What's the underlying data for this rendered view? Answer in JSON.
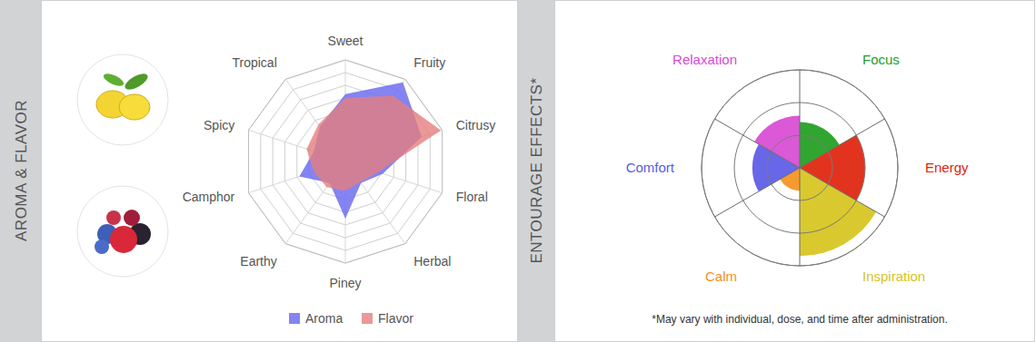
{
  "chart_data": [
    {
      "type": "radar",
      "title": "AROMA & FLAVOR",
      "categories": [
        "Sweet",
        "Fruity",
        "Citrusy",
        "Floral",
        "Herbal",
        "Piney",
        "Earthy",
        "Camphor",
        "Spicy",
        "Tropical"
      ],
      "series": [
        {
          "name": "Aroma",
          "color": "#6f6ff0",
          "values": [
            5.3,
            7.7,
            6.3,
            3.1,
            2.1,
            4.5,
            2.1,
            3.8,
            2.6,
            3.4
          ]
        },
        {
          "name": "Flavor",
          "color": "#e57e7e",
          "values": [
            5.0,
            6.4,
            7.9,
            2.7,
            2.0,
            2.3,
            2.5,
            2.6,
            3.2,
            3.6
          ]
        }
      ],
      "ylim": [
        0,
        8
      ],
      "yticks": [
        1,
        2,
        3,
        4,
        5,
        6,
        7,
        8
      ],
      "grid": true,
      "tick_labels": "x",
      "legend": "bottom"
    },
    {
      "type": "polar_area",
      "title": "ENTOURAGE EFFECTS*",
      "categories": [
        "Focus",
        "Energy",
        "Inspiration",
        "Calm",
        "Comfort",
        "Relaxation"
      ],
      "values": [
        1.4,
        2.0,
        2.7,
        0.7,
        1.45,
        1.6
      ],
      "colors": [
        "#1e9e1e",
        "#e0220c",
        "#d6c41c",
        "#f5911e",
        "#5a5ae6",
        "#d84ad4"
      ],
      "ylim": [
        0,
        3
      ],
      "yticks": [
        1,
        2,
        3
      ],
      "grid": true,
      "tick_labels": "x",
      "footnote": "*May vary with individual, dose, and time after administration."
    }
  ]
}
